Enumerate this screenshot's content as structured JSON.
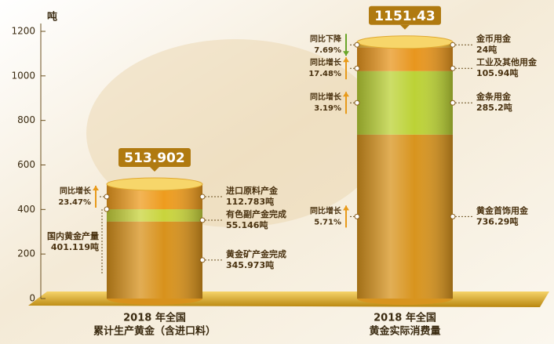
{
  "chart_data": {
    "type": "stacked_cylinder",
    "y_unit": "吨",
    "ylim": [
      0,
      1200
    ],
    "yticks": [
      0,
      200,
      400,
      600,
      800,
      1000,
      1200
    ],
    "categories": [
      [
        "2018 年全国",
        "累计生产黄金（含进口料）"
      ],
      [
        "2018 年全国",
        "黄金实际消费量"
      ]
    ],
    "stacks": [
      {
        "total": 513.902,
        "segments": [
          {
            "name": "黄金矿产金完成",
            "value": 345.973,
            "value_label": "345.973吨",
            "color": "#d8921c"
          },
          {
            "name": "有色副产金完成",
            "value": 55.146,
            "value_label": "55.146吨",
            "color": "#c9d43c"
          },
          {
            "name": "进口原料产金",
            "value": 112.783,
            "value_label": "112.783吨",
            "color": "#ee9c1e",
            "growth": {
              "label": "同比增长",
              "value": 23.47,
              "value_label": "23.47%"
            }
          }
        ],
        "subtotal": {
          "name": "国内黄金产量",
          "value": 401.119,
          "value_label": "401.119吨"
        }
      },
      {
        "total": 1151.43,
        "segments": [
          {
            "name": "黄金首饰用金",
            "value": 736.29,
            "value_label": "736.29吨",
            "color": "#d8941e",
            "growth": {
              "label": "同比增长",
              "value": 5.71,
              "value_label": "5.71%"
            }
          },
          {
            "name": "金条用金",
            "value": 285.2,
            "value_label": "285.2吨",
            "color": "#bcd236",
            "growth": {
              "label": "同比增长",
              "value": 3.19,
              "value_label": "3.19%"
            }
          },
          {
            "name": "工业及其他用金",
            "value": 105.94,
            "value_label": "105.94吨",
            "color": "#e8961e",
            "growth": {
              "label": "同比增长",
              "value": 17.48,
              "value_label": "17.48%"
            }
          },
          {
            "name": "金币用金",
            "value": 24,
            "value_label": "24吨",
            "color": "#f2be3c",
            "growth": {
              "label": "同比下降",
              "value": -7.69,
              "value_label": "7.69%"
            }
          }
        ]
      }
    ]
  }
}
